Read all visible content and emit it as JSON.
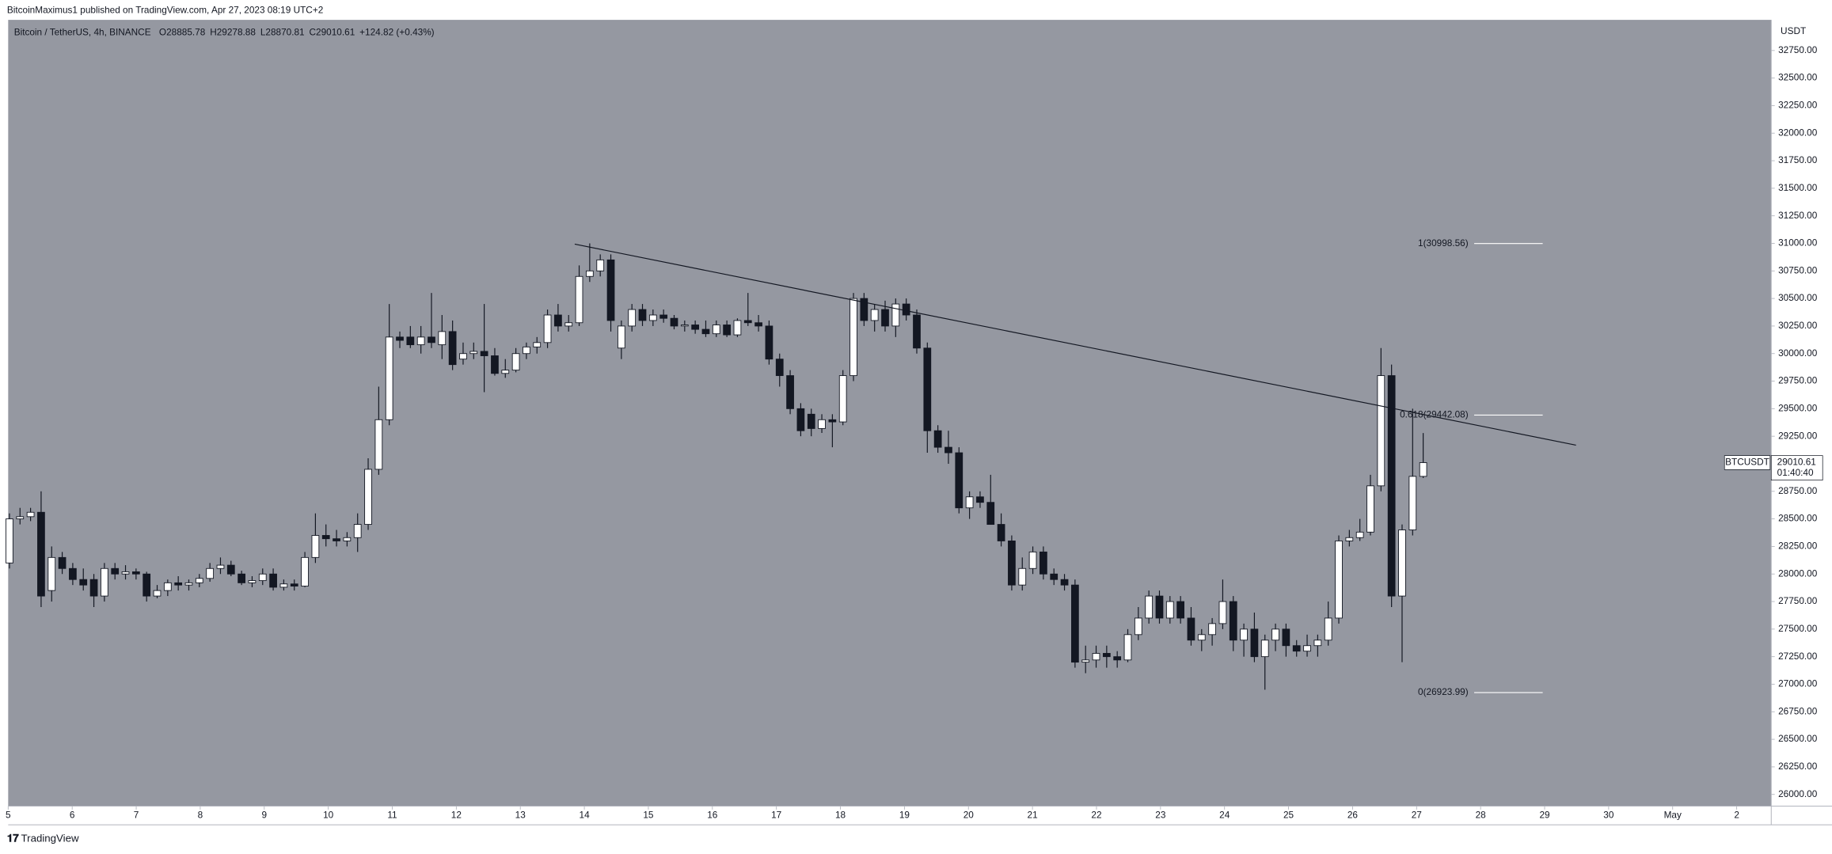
{
  "header": {
    "publisher": "BitcoinMaximus1 published on TradingView.com, Apr 27, 2023 08:19 UTC+2"
  },
  "footer": {
    "brand": "TradingView"
  },
  "chart_data": {
    "type": "candlestick",
    "symbol_info": "Bitcoin / TetherUS, 4h, BINANCE",
    "ohlc_labels": [
      "O",
      "H",
      "L",
      "C"
    ],
    "ohlc": [
      28885.78,
      29278.88,
      28870.81,
      29010.61
    ],
    "change": "+124.82 (+0.43%)",
    "y_axis_unit": "USDT",
    "symbol": "BTCUSDT",
    "last_price": 29010.61,
    "countdown": "01:40:40",
    "background": "#9598a1",
    "up_color": "#ffffff",
    "down_color": "#131722",
    "ylim": [
      25894,
      33028
    ],
    "yticks": [
      {
        "value": 26000,
        "label": "26000.00"
      },
      {
        "value": 26250,
        "label": "26250.00"
      },
      {
        "value": 26500,
        "label": "26500.00"
      },
      {
        "value": 26750,
        "label": "26750.00"
      },
      {
        "value": 27000,
        "label": "27000.00"
      },
      {
        "value": 27250,
        "label": "27250.00"
      },
      {
        "value": 27500,
        "label": "27500.00"
      },
      {
        "value": 27750,
        "label": "27750.00"
      },
      {
        "value": 28000,
        "label": "28000.00"
      },
      {
        "value": 28250,
        "label": "28250.00"
      },
      {
        "value": 28500,
        "label": "28500.00"
      },
      {
        "value": 28750,
        "label": "28750.00"
      },
      {
        "value": 29000,
        "label": "29000.00"
      },
      {
        "value": 29250,
        "label": "29250.00"
      },
      {
        "value": 29500,
        "label": "29500.00"
      },
      {
        "value": 29750,
        "label": "29750.00"
      },
      {
        "value": 30000,
        "label": "30000.00"
      },
      {
        "value": 30250,
        "label": "30250.00"
      },
      {
        "value": 30500,
        "label": "30500.00"
      },
      {
        "value": 30750,
        "label": "30750.00"
      },
      {
        "value": 31000,
        "label": "31000.00"
      },
      {
        "value": 31250,
        "label": "31250.00"
      },
      {
        "value": 31500,
        "label": "31500.00"
      },
      {
        "value": 31750,
        "label": "31750.00"
      },
      {
        "value": 32000,
        "label": "32000.00"
      },
      {
        "value": 32250,
        "label": "32250.00"
      },
      {
        "value": 32500,
        "label": "32500.00"
      },
      {
        "value": 32750,
        "label": "32750.00"
      }
    ],
    "xlim": [
      5,
      32.54
    ],
    "xticks": [
      5,
      6,
      7,
      8,
      9,
      10,
      11,
      12,
      13,
      14,
      15,
      16,
      17,
      18,
      19,
      20,
      21,
      22,
      23,
      24,
      25,
      26,
      27,
      28,
      29,
      30,
      {
        "value": 31,
        "label": "May"
      },
      {
        "value": 32,
        "label": "2"
      }
    ],
    "candles": [
      [
        28100,
        28550,
        28050,
        28500
      ],
      [
        28500,
        28600,
        28450,
        28520
      ],
      [
        28520,
        28600,
        28480,
        28560
      ],
      [
        28560,
        28750,
        27700,
        27800
      ],
      [
        27850,
        28250,
        27750,
        28150
      ],
      [
        28150,
        28200,
        28000,
        28050
      ],
      [
        28050,
        28100,
        27900,
        27950
      ],
      [
        27950,
        28050,
        27850,
        27900
      ],
      [
        27950,
        28000,
        27700,
        27800
      ],
      [
        27800,
        28100,
        27750,
        28050
      ],
      [
        28050,
        28100,
        27950,
        28000
      ],
      [
        28000,
        28080,
        27950,
        28020
      ],
      [
        28020,
        28050,
        27950,
        28000
      ],
      [
        28000,
        28020,
        27750,
        27800
      ],
      [
        27800,
        27900,
        27780,
        27850
      ],
      [
        27850,
        27950,
        27800,
        27920
      ],
      [
        27920,
        27980,
        27850,
        27900
      ],
      [
        27900,
        27950,
        27850,
        27920
      ],
      [
        27920,
        28000,
        27880,
        27960
      ],
      [
        27960,
        28100,
        27930,
        28050
      ],
      [
        28050,
        28150,
        28000,
        28080
      ],
      [
        28080,
        28120,
        27980,
        28000
      ],
      [
        28000,
        28030,
        27900,
        27920
      ],
      [
        27920,
        27980,
        27880,
        27940
      ],
      [
        27940,
        28050,
        27900,
        28000
      ],
      [
        28000,
        28050,
        27850,
        27880
      ],
      [
        27880,
        27950,
        27850,
        27910
      ],
      [
        27910,
        27950,
        27850,
        27890
      ],
      [
        27890,
        28200,
        27880,
        28150
      ],
      [
        28150,
        28550,
        28100,
        28350
      ],
      [
        28350,
        28450,
        28250,
        28320
      ],
      [
        28320,
        28400,
        28250,
        28300
      ],
      [
        28300,
        28380,
        28250,
        28330
      ],
      [
        28330,
        28550,
        28200,
        28450
      ],
      [
        28450,
        29050,
        28400,
        28950
      ],
      [
        28950,
        29700,
        28900,
        29400
      ],
      [
        29400,
        30450,
        29350,
        30150
      ],
      [
        30150,
        30200,
        30050,
        30120
      ],
      [
        30150,
        30250,
        30050,
        30080
      ],
      [
        30080,
        30250,
        30000,
        30150
      ],
      [
        30150,
        30550,
        30050,
        30100
      ],
      [
        30080,
        30350,
        29950,
        30200
      ],
      [
        30200,
        30300,
        29850,
        29900
      ],
      [
        29950,
        30100,
        29900,
        30000
      ],
      [
        30000,
        30100,
        29950,
        30020
      ],
      [
        30020,
        30450,
        29650,
        29980
      ],
      [
        29980,
        30050,
        29800,
        29820
      ],
      [
        29820,
        29950,
        29780,
        29850
      ],
      [
        29850,
        30050,
        29830,
        30000
      ],
      [
        30000,
        30100,
        29950,
        30060
      ],
      [
        30060,
        30150,
        30000,
        30100
      ],
      [
        30100,
        30400,
        30050,
        30350
      ],
      [
        30350,
        30450,
        30200,
        30250
      ],
      [
        30250,
        30350,
        30200,
        30280
      ],
      [
        30280,
        30800,
        30250,
        30700
      ],
      [
        30700,
        31000,
        30650,
        30750
      ],
      [
        30750,
        30900,
        30700,
        30850
      ],
      [
        30850,
        30900,
        30200,
        30300
      ],
      [
        30050,
        30300,
        29950,
        30250
      ],
      [
        30250,
        30450,
        30200,
        30400
      ],
      [
        30400,
        30450,
        30250,
        30300
      ],
      [
        30300,
        30400,
        30250,
        30350
      ],
      [
        30350,
        30400,
        30280,
        30320
      ],
      [
        30320,
        30350,
        30220,
        30250
      ],
      [
        30250,
        30300,
        30200,
        30260
      ],
      [
        30260,
        30300,
        30180,
        30220
      ],
      [
        30220,
        30300,
        30150,
        30180
      ],
      [
        30180,
        30300,
        30150,
        30260
      ],
      [
        30260,
        30300,
        30150,
        30170
      ],
      [
        30170,
        30320,
        30150,
        30300
      ],
      [
        30300,
        30550,
        30250,
        30280
      ],
      [
        30280,
        30350,
        30200,
        30250
      ],
      [
        30250,
        30300,
        29900,
        29950
      ],
      [
        29950,
        30000,
        29700,
        29800
      ],
      [
        29800,
        29850,
        29450,
        29500
      ],
      [
        29500,
        29550,
        29250,
        29300
      ],
      [
        29450,
        29500,
        29250,
        29320
      ],
      [
        29320,
        29450,
        29280,
        29400
      ],
      [
        29400,
        29450,
        29150,
        29380
      ],
      [
        29380,
        29850,
        29350,
        29800
      ],
      [
        29800,
        30550,
        29750,
        30500
      ],
      [
        30500,
        30550,
        30250,
        30300
      ],
      [
        30300,
        30450,
        30200,
        30400
      ],
      [
        30400,
        30480,
        30200,
        30250
      ],
      [
        30250,
        30500,
        30150,
        30450
      ],
      [
        30450,
        30500,
        30300,
        30350
      ],
      [
        30350,
        30400,
        30000,
        30050
      ],
      [
        30050,
        30100,
        29100,
        29300
      ],
      [
        29300,
        29350,
        29100,
        29150
      ],
      [
        29150,
        29300,
        29000,
        29100
      ],
      [
        29100,
        29150,
        28550,
        28600
      ],
      [
        28600,
        28750,
        28500,
        28700
      ],
      [
        28700,
        28750,
        28600,
        28650
      ],
      [
        28650,
        28900,
        28450,
        28450
      ],
      [
        28450,
        28550,
        28250,
        28300
      ],
      [
        28300,
        28350,
        27850,
        27900
      ],
      [
        27900,
        28150,
        27850,
        28050
      ],
      [
        28050,
        28250,
        28000,
        28200
      ],
      [
        28200,
        28250,
        27950,
        28000
      ],
      [
        28000,
        28050,
        27900,
        27950
      ],
      [
        27950,
        28000,
        27850,
        27900
      ],
      [
        27900,
        27950,
        27150,
        27200
      ],
      [
        27200,
        27350,
        27100,
        27220
      ],
      [
        27220,
        27350,
        27150,
        27280
      ],
      [
        27280,
        27350,
        27150,
        27250
      ],
      [
        27250,
        27300,
        27150,
        27220
      ],
      [
        27220,
        27500,
        27200,
        27450
      ],
      [
        27450,
        27700,
        27400,
        27600
      ],
      [
        27600,
        27850,
        27550,
        27800
      ],
      [
        27800,
        27850,
        27550,
        27600
      ],
      [
        27600,
        27800,
        27550,
        27750
      ],
      [
        27750,
        27800,
        27550,
        27600
      ],
      [
        27600,
        27700,
        27350,
        27400
      ],
      [
        27400,
        27500,
        27300,
        27450
      ],
      [
        27450,
        27600,
        27350,
        27550
      ],
      [
        27550,
        27950,
        27500,
        27750
      ],
      [
        27750,
        27800,
        27300,
        27400
      ],
      [
        27400,
        27550,
        27250,
        27500
      ],
      [
        27500,
        27650,
        27200,
        27250
      ],
      [
        27250,
        27450,
        26950,
        27400
      ],
      [
        27400,
        27550,
        27300,
        27500
      ],
      [
        27500,
        27550,
        27250,
        27350
      ],
      [
        27350,
        27400,
        27250,
        27300
      ],
      [
        27300,
        27450,
        27250,
        27350
      ],
      [
        27350,
        27450,
        27250,
        27400
      ],
      [
        27400,
        27750,
        27350,
        27600
      ],
      [
        27600,
        28350,
        27550,
        28300
      ],
      [
        28300,
        28400,
        28250,
        28330
      ],
      [
        28330,
        28500,
        28300,
        28380
      ],
      [
        28380,
        28900,
        28350,
        28800
      ],
      [
        28800,
        30050,
        28750,
        29800
      ],
      [
        29800,
        29900,
        27700,
        27800
      ],
      [
        27800,
        28450,
        27200,
        28400
      ],
      [
        28400,
        29500,
        28350,
        28886
      ],
      [
        28885.78,
        29278.88,
        28870.81,
        29010.61
      ]
    ],
    "trendline": {
      "x": [
        13.85,
        29.49
      ],
      "y": [
        30993,
        29169
      ]
    },
    "fib_levels": [
      {
        "text": "1(30998.56)",
        "value": 30998.56
      },
      {
        "text": "0.618(29442.08)",
        "value": 29442.08
      },
      {
        "text": "0(26923.99)",
        "value": 26923.99
      }
    ],
    "fib_x": [
      27.9,
      28.97
    ]
  }
}
